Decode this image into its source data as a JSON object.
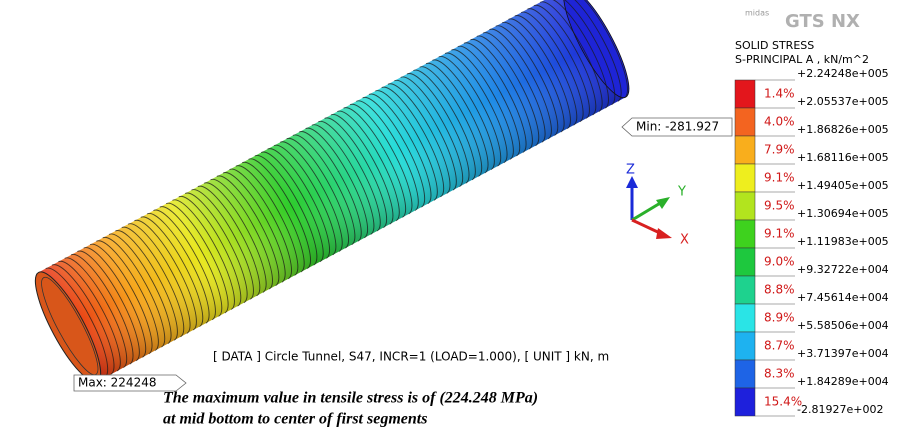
{
  "logo": {
    "brand": "midas",
    "product": "GTS NX"
  },
  "legend": {
    "title": "SOLID STRESS",
    "subtitle": "S-PRINCIPAL A , kN/m^2",
    "levels": [
      "+2.24248e+005",
      "+2.05537e+005",
      "+1.86826e+005",
      "+1.68116e+005",
      "+1.49405e+005",
      "+1.30694e+005",
      "+1.11983e+005",
      "+9.32722e+004",
      "+7.45614e+004",
      "+5.58506e+004",
      "+3.71397e+004",
      "+1.84289e+004",
      "-2.81927e+002"
    ],
    "percents": [
      "1.4%",
      "4.0%",
      "7.9%",
      "9.1%",
      "9.5%",
      "9.1%",
      "9.0%",
      "8.8%",
      "8.9%",
      "8.7%",
      "8.3%",
      "15.4%"
    ],
    "colors": [
      "#e3161c",
      "#f36420",
      "#f9ae1c",
      "#eeee1e",
      "#b2e41e",
      "#3ed21e",
      "#1ec83e",
      "#1ed28e",
      "#2ae4e6",
      "#1eb2f0",
      "#1e64e6",
      "#1e20dc"
    ]
  },
  "annotations": {
    "min": "Min: -281.927",
    "max": "Max: 224248"
  },
  "axes": {
    "z": "Z",
    "y": "Y",
    "x": "X"
  },
  "info": "[ DATA ] Circle Tunnel, S47, INCR=1 (LOAD=1.000), [ UNIT ] kN, m",
  "caption": [
    "The maximum value in tensile stress is of (224.248 MPa)",
    "at mid bottom to center of first segments"
  ]
}
